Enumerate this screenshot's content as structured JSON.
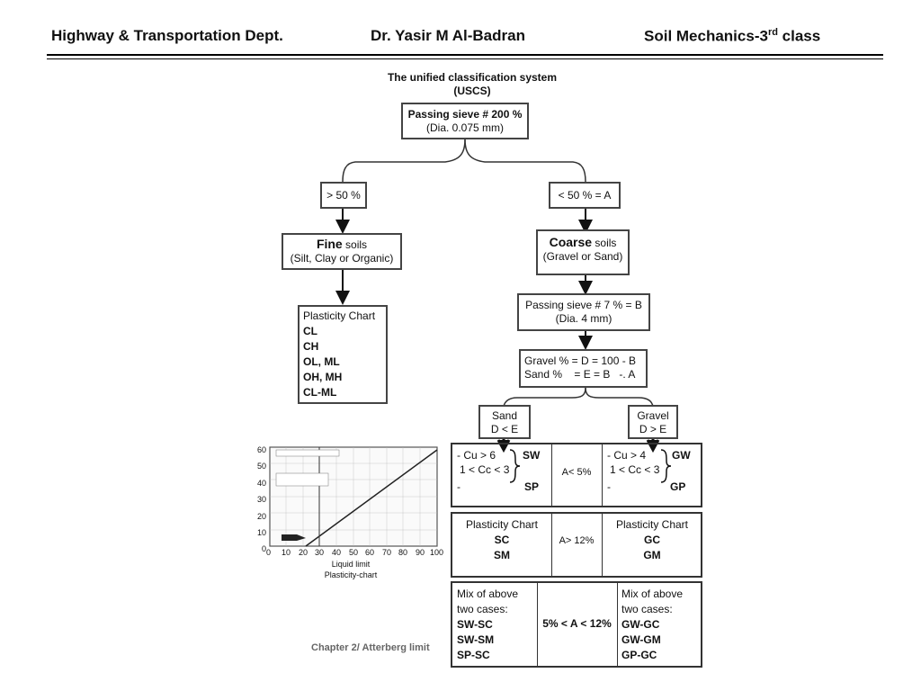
{
  "header": {
    "dept": "Highway & Transportation Dept.",
    "author": "Dr. Yasir M Al-Badran",
    "course_main": "Soil Mechanics-3",
    "course_sup": "rd",
    "course_tail": " class"
  },
  "diagram": {
    "title_line1": "The unified classification system",
    "title_line2": "(USCS)",
    "root_line1": "Passing sieve # 200 %",
    "root_line2": "(Dia. 0.075 mm)",
    "gt50": "> 50 %",
    "lt50": "< 50 % = A",
    "fine_bold": "Fine",
    "fine_rest": " soils",
    "fine_sub": "(Silt, Clay or Organic)",
    "coarse_bold": "Coarse",
    "coarse_rest": " soils",
    "coarse_sub": "(Gravel or Sand)",
    "plasticity_title": "Plasticity Chart",
    "plasticity_items": [
      "CL",
      "CH",
      "OL, ML",
      "OH, MH",
      "CL-ML"
    ],
    "sieve7_line1": "Passing sieve # 7 % = B",
    "sieve7_line2": "(Dia. 4 mm)",
    "gravel_line": "Gravel % = D = 100 - B",
    "sand_line": "Sand %    = E = B   -. A",
    "sand_box_line1": "Sand",
    "sand_box_line2": "D < E",
    "gravel_box_line1": "Gravel",
    "gravel_box_line2": "D > E",
    "row1": {
      "left_line1": "- Cu > 6",
      "left_line2": "1 < Cc < 3",
      "left_line3": "-",
      "left_sw": "SW",
      "left_sp": "SP",
      "mid": "A< 5%",
      "right_line1": "- Cu > 4",
      "right_line2": "1 < Cc < 3",
      "right_line3": "-",
      "right_gw": "GW",
      "right_gp": "GP"
    },
    "row2": {
      "left_title": "Plasticity Chart",
      "left_a": "SC",
      "left_b": "SM",
      "mid": "A> 12%",
      "right_title": "Plasticity Chart",
      "right_a": "GC",
      "right_b": "GM"
    },
    "row3": {
      "left_line1": "Mix of above",
      "left_line2": "two cases:",
      "left_items": [
        "SW-SC",
        "SW-SM",
        "SP-SC"
      ],
      "mid": "5% < A < 12%",
      "right_line1": "Mix of above",
      "right_line2": "two cases:",
      "right_items": [
        "GW-GC",
        "GW-GM",
        "GP-GC"
      ]
    }
  },
  "plasticity_chart": {
    "x_label": "Liquid limit",
    "caption": "Plasticity-chart",
    "x_ticks": [
      "0",
      "10",
      "20",
      "30",
      "40",
      "50",
      "60",
      "70",
      "80",
      "90",
      "100"
    ],
    "y_ticks": [
      "60",
      "50",
      "40",
      "30",
      "20",
      "10",
      "0"
    ]
  },
  "footer": "Chapter 2/ Atterberg limit"
}
